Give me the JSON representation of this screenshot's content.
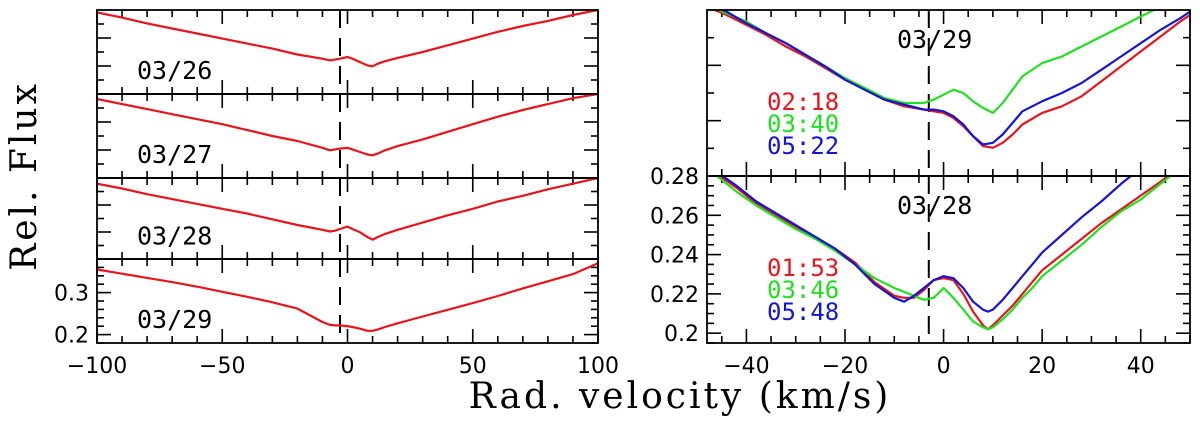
{
  "figure": {
    "xlabel": "Rad. velocity (km/s)",
    "ylabel": "Rel. Flux"
  },
  "colors": {
    "red": "#e8141c",
    "green": "#20e020",
    "blue": "#1414d4",
    "axes": "#000000"
  },
  "chart_data": [
    {
      "type": "line",
      "panel": "left",
      "xlim": [
        -100,
        100
      ],
      "xticks": [
        -100,
        -50,
        0,
        50,
        100
      ],
      "xtick_labels": [
        "−100",
        "−50",
        "0",
        "50",
        "100"
      ],
      "vline_x": -3,
      "subplots": [
        {
          "label": "03/26",
          "ylim": [
            0,
            1
          ],
          "yticks": [],
          "series": [
            {
              "color": "red",
              "x": [
                -100,
                -90,
                -80,
                -70,
                -60,
                -50,
                -40,
                -30,
                -20,
                -10,
                -7,
                -5,
                -3,
                0,
                2,
                5,
                8,
                10,
                12,
                15,
                20,
                30,
                40,
                50,
                60,
                70,
                80,
                90,
                100
              ],
              "y": [
                0.97,
                0.91,
                0.84,
                0.78,
                0.72,
                0.66,
                0.6,
                0.54,
                0.47,
                0.42,
                0.4,
                0.41,
                0.42,
                0.44,
                0.42,
                0.38,
                0.34,
                0.33,
                0.36,
                0.39,
                0.43,
                0.5,
                0.58,
                0.66,
                0.74,
                0.81,
                0.87,
                0.94,
                1.0
              ]
            }
          ]
        },
        {
          "label": "03/27",
          "ylim": [
            0,
            1
          ],
          "yticks": [],
          "series": [
            {
              "color": "red",
              "x": [
                -100,
                -90,
                -80,
                -70,
                -60,
                -50,
                -40,
                -30,
                -20,
                -10,
                -7,
                -5,
                -3,
                0,
                2,
                5,
                8,
                10,
                12,
                15,
                20,
                30,
                40,
                50,
                60,
                70,
                80,
                90,
                100
              ],
              "y": [
                0.94,
                0.88,
                0.82,
                0.76,
                0.7,
                0.64,
                0.57,
                0.5,
                0.44,
                0.36,
                0.33,
                0.34,
                0.35,
                0.36,
                0.34,
                0.31,
                0.28,
                0.27,
                0.29,
                0.33,
                0.38,
                0.46,
                0.55,
                0.64,
                0.73,
                0.81,
                0.88,
                0.95,
                1.0
              ]
            }
          ]
        },
        {
          "label": "03/28",
          "ylim": [
            0,
            1
          ],
          "yticks": [],
          "series": [
            {
              "color": "red",
              "x": [
                -100,
                -90,
                -80,
                -70,
                -60,
                -50,
                -40,
                -30,
                -20,
                -10,
                -7,
                -5,
                -3,
                0,
                2,
                5,
                8,
                10,
                12,
                15,
                20,
                30,
                40,
                50,
                60,
                70,
                80,
                90,
                100
              ],
              "y": [
                0.93,
                0.87,
                0.8,
                0.74,
                0.68,
                0.62,
                0.56,
                0.49,
                0.42,
                0.36,
                0.34,
                0.35,
                0.37,
                0.4,
                0.37,
                0.33,
                0.27,
                0.24,
                0.27,
                0.31,
                0.36,
                0.45,
                0.54,
                0.62,
                0.71,
                0.78,
                0.86,
                0.93,
                1.0
              ]
            }
          ]
        },
        {
          "label": "03/29",
          "ylim": [
            0.18,
            0.38
          ],
          "yticks": [
            0.2,
            0.3
          ],
          "ytick_labels": [
            "0.2",
            "0.3"
          ],
          "series": [
            {
              "color": "red",
              "x": [
                -100,
                -90,
                -80,
                -70,
                -60,
                -50,
                -40,
                -30,
                -20,
                -10,
                -7,
                -5,
                -3,
                0,
                2,
                5,
                8,
                10,
                12,
                15,
                20,
                30,
                40,
                50,
                60,
                70,
                80,
                90,
                100
              ],
              "y": [
                0.355,
                0.345,
                0.335,
                0.325,
                0.314,
                0.302,
                0.29,
                0.277,
                0.262,
                0.23,
                0.223,
                0.222,
                0.222,
                0.22,
                0.218,
                0.214,
                0.209,
                0.209,
                0.212,
                0.218,
                0.227,
                0.243,
                0.259,
                0.275,
                0.292,
                0.31,
                0.327,
                0.344,
                0.37
              ]
            }
          ]
        }
      ]
    },
    {
      "type": "line",
      "panel": "right",
      "xlim": [
        -48,
        50
      ],
      "xticks": [
        -40,
        -20,
        0,
        20,
        40
      ],
      "xtick_labels": [
        "−40",
        "−20",
        "0",
        "20",
        "40"
      ],
      "vline_x": -3,
      "subplots": [
        {
          "label": "03/29",
          "ylim": [
            0,
            1
          ],
          "yticks": [],
          "time_labels": [
            {
              "text": "02:18",
              "color": "red"
            },
            {
              "text": "03:40",
              "color": "green"
            },
            {
              "text": "05:22",
              "color": "blue"
            }
          ],
          "series": [
            {
              "color": "red",
              "x": [
                -48,
                -44,
                -40,
                -36,
                -32,
                -28,
                -24,
                -20,
                -16,
                -12,
                -8,
                -4,
                -2,
                0,
                2,
                4,
                6,
                8,
                10,
                12,
                14,
                16,
                20,
                24,
                28,
                32,
                36,
                40,
                44,
                48,
                50
              ],
              "y": [
                1.02,
                0.97,
                0.91,
                0.85,
                0.78,
                0.72,
                0.65,
                0.58,
                0.52,
                0.46,
                0.42,
                0.4,
                0.39,
                0.38,
                0.35,
                0.3,
                0.24,
                0.18,
                0.17,
                0.2,
                0.25,
                0.31,
                0.38,
                0.42,
                0.48,
                0.57,
                0.66,
                0.75,
                0.84,
                0.93,
                0.97
              ]
            },
            {
              "color": "green",
              "x": [
                -48,
                -44,
                -40,
                -36,
                -32,
                -28,
                -24,
                -20,
                -16,
                -12,
                -8,
                -4,
                -2,
                0,
                2,
                4,
                6,
                8,
                10,
                12,
                14,
                16,
                20,
                24,
                28,
                32,
                36,
                40,
                44,
                46
              ],
              "y": [
                1.03,
                0.98,
                0.93,
                0.86,
                0.8,
                0.73,
                0.66,
                0.59,
                0.53,
                0.47,
                0.44,
                0.44,
                0.46,
                0.49,
                0.52,
                0.5,
                0.45,
                0.41,
                0.38,
                0.44,
                0.52,
                0.6,
                0.68,
                0.72,
                0.78,
                0.84,
                0.9,
                0.96,
                1.02,
                1.06
              ]
            },
            {
              "color": "blue",
              "x": [
                -48,
                -44,
                -40,
                -36,
                -32,
                -28,
                -24,
                -20,
                -16,
                -12,
                -8,
                -4,
                -2,
                0,
                2,
                4,
                6,
                8,
                10,
                12,
                14,
                16,
                20,
                24,
                28,
                32,
                36,
                40,
                44,
                48,
                50
              ],
              "y": [
                1.04,
                0.99,
                0.92,
                0.86,
                0.8,
                0.73,
                0.66,
                0.58,
                0.52,
                0.46,
                0.43,
                0.4,
                0.4,
                0.39,
                0.36,
                0.31,
                0.24,
                0.19,
                0.2,
                0.25,
                0.32,
                0.39,
                0.45,
                0.5,
                0.56,
                0.64,
                0.72,
                0.8,
                0.88,
                0.95,
                0.99
              ]
            }
          ]
        },
        {
          "label": "03/28",
          "ylim": [
            0.195,
            0.28
          ],
          "yticks": [
            0.2,
            0.22,
            0.24,
            0.26,
            0.28
          ],
          "ytick_labels": [
            "0.2",
            "0.22",
            "0.24",
            "0.26",
            "0.28"
          ],
          "time_labels": [
            {
              "text": "01:53",
              "color": "red"
            },
            {
              "text": "03:46",
              "color": "green"
            },
            {
              "text": "05:48",
              "color": "blue"
            }
          ],
          "series": [
            {
              "color": "red",
              "x": [
                -46,
                -42,
                -38,
                -34,
                -30,
                -26,
                -22,
                -18,
                -14,
                -10,
                -8,
                -6,
                -4,
                -2,
                0,
                2,
                4,
                6,
                8,
                9,
                10,
                12,
                14,
                16,
                18,
                20,
                24,
                28,
                32,
                36,
                40,
                44,
                46
              ],
              "y": [
                0.281,
                0.274,
                0.266,
                0.26,
                0.254,
                0.249,
                0.243,
                0.236,
                0.226,
                0.219,
                0.218,
                0.218,
                0.222,
                0.227,
                0.228,
                0.227,
                0.22,
                0.211,
                0.204,
                0.202,
                0.204,
                0.209,
                0.214,
                0.22,
                0.226,
                0.232,
                0.24,
                0.248,
                0.256,
                0.263,
                0.27,
                0.277,
                0.281
              ]
            },
            {
              "color": "green",
              "x": [
                -46,
                -42,
                -38,
                -34,
                -30,
                -26,
                -22,
                -18,
                -14,
                -10,
                -8,
                -6,
                -4,
                -2,
                0,
                2,
                4,
                6,
                8,
                9,
                10,
                12,
                14,
                16,
                18,
                20,
                24,
                28,
                32,
                36,
                40,
                44,
                46
              ],
              "y": [
                0.28,
                0.272,
                0.265,
                0.259,
                0.253,
                0.248,
                0.242,
                0.235,
                0.228,
                0.223,
                0.221,
                0.219,
                0.217,
                0.218,
                0.223,
                0.218,
                0.212,
                0.206,
                0.203,
                0.202,
                0.203,
                0.207,
                0.212,
                0.218,
                0.223,
                0.229,
                0.237,
                0.245,
                0.254,
                0.262,
                0.268,
                0.276,
                0.28
              ]
            },
            {
              "color": "blue",
              "x": [
                -46,
                -42,
                -38,
                -34,
                -30,
                -26,
                -22,
                -18,
                -14,
                -10,
                -8,
                -6,
                -4,
                -2,
                0,
                2,
                4,
                6,
                8,
                9,
                10,
                12,
                14,
                16,
                18,
                20,
                24,
                28,
                32,
                36,
                38,
                40
              ],
              "y": [
                0.282,
                0.275,
                0.267,
                0.261,
                0.255,
                0.249,
                0.243,
                0.235,
                0.225,
                0.218,
                0.216,
                0.219,
                0.223,
                0.227,
                0.229,
                0.228,
                0.223,
                0.216,
                0.212,
                0.211,
                0.212,
                0.217,
                0.223,
                0.229,
                0.235,
                0.241,
                0.25,
                0.259,
                0.267,
                0.276,
                0.28,
                0.285
              ]
            }
          ]
        }
      ]
    }
  ]
}
